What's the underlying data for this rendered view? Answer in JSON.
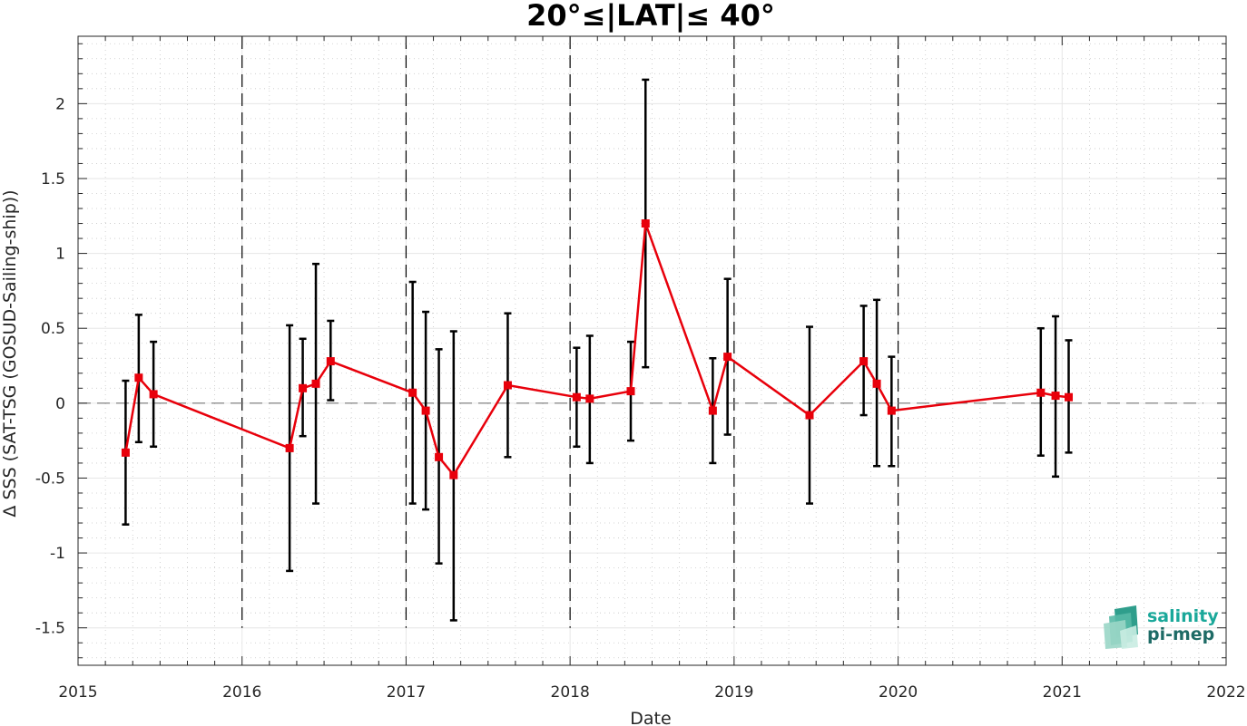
{
  "chart_data": {
    "type": "line",
    "title": "20°≤|LAT|≤ 40°",
    "xlabel": "Date",
    "ylabel": "Δ SSS (SAT-TSG (GOSUD-Sailing-ship))",
    "xlim": [
      2015,
      2022
    ],
    "ylim": [
      -1.75,
      2.45
    ],
    "x_ticks": [
      2015,
      2016,
      2017,
      2018,
      2019,
      2020,
      2021,
      2022
    ],
    "y_ticks": [
      -1.5,
      -1,
      -0.5,
      0,
      0.5,
      1,
      1.5,
      2
    ],
    "y_tick_labels": [
      "-1.5",
      "-1",
      "-0.5",
      "0",
      "0.5",
      "1",
      "1.5",
      "2"
    ],
    "grid": true,
    "reference_line": 0,
    "year_boundaries": [
      2016,
      2017,
      2018,
      2019,
      2020
    ],
    "series": [
      {
        "color": "#e8000b",
        "error_bar_color": "#000000",
        "marker": "square",
        "points": [
          {
            "x": 2015.29,
            "y": -0.33,
            "lo": -0.81,
            "hi": 0.15
          },
          {
            "x": 2015.37,
            "y": 0.17,
            "lo": -0.26,
            "hi": 0.59
          },
          {
            "x": 2015.46,
            "y": 0.06,
            "lo": -0.29,
            "hi": 0.41
          },
          {
            "x": 2016.29,
            "y": -0.3,
            "lo": -1.12,
            "hi": 0.52
          },
          {
            "x": 2016.37,
            "y": 0.1,
            "lo": -0.22,
            "hi": 0.43
          },
          {
            "x": 2016.45,
            "y": 0.13,
            "lo": -0.67,
            "hi": 0.93
          },
          {
            "x": 2016.54,
            "y": 0.28,
            "lo": 0.02,
            "hi": 0.55
          },
          {
            "x": 2017.04,
            "y": 0.07,
            "lo": -0.67,
            "hi": 0.81
          },
          {
            "x": 2017.12,
            "y": -0.05,
            "lo": -0.71,
            "hi": 0.61
          },
          {
            "x": 2017.2,
            "y": -0.36,
            "lo": -1.07,
            "hi": 0.36
          },
          {
            "x": 2017.29,
            "y": -0.48,
            "lo": -1.45,
            "hi": 0.48
          },
          {
            "x": 2017.62,
            "y": 0.12,
            "lo": -0.36,
            "hi": 0.6
          },
          {
            "x": 2018.04,
            "y": 0.04,
            "lo": -0.29,
            "hi": 0.37
          },
          {
            "x": 2018.12,
            "y": 0.03,
            "lo": -0.4,
            "hi": 0.45
          },
          {
            "x": 2018.37,
            "y": 0.08,
            "lo": -0.25,
            "hi": 0.41
          },
          {
            "x": 2018.46,
            "y": 1.2,
            "lo": 0.24,
            "hi": 2.16
          },
          {
            "x": 2018.87,
            "y": -0.05,
            "lo": -0.4,
            "hi": 0.3
          },
          {
            "x": 2018.96,
            "y": 0.31,
            "lo": -0.21,
            "hi": 0.83
          },
          {
            "x": 2019.46,
            "y": -0.08,
            "lo": -0.67,
            "hi": 0.51
          },
          {
            "x": 2019.79,
            "y": 0.28,
            "lo": -0.08,
            "hi": 0.65
          },
          {
            "x": 2019.87,
            "y": 0.13,
            "lo": -0.42,
            "hi": 0.69
          },
          {
            "x": 2019.96,
            "y": -0.05,
            "lo": -0.42,
            "hi": 0.31
          },
          {
            "x": 2020.87,
            "y": 0.07,
            "lo": -0.35,
            "hi": 0.5
          },
          {
            "x": 2020.96,
            "y": 0.05,
            "lo": -0.49,
            "hi": 0.58
          },
          {
            "x": 2021.04,
            "y": 0.04,
            "lo": -0.33,
            "hi": 0.42
          }
        ]
      }
    ]
  },
  "logo": {
    "line1": "salinity",
    "line2": "pi-mep",
    "color1": "#1aa89a",
    "color2": "#1e6b66"
  }
}
